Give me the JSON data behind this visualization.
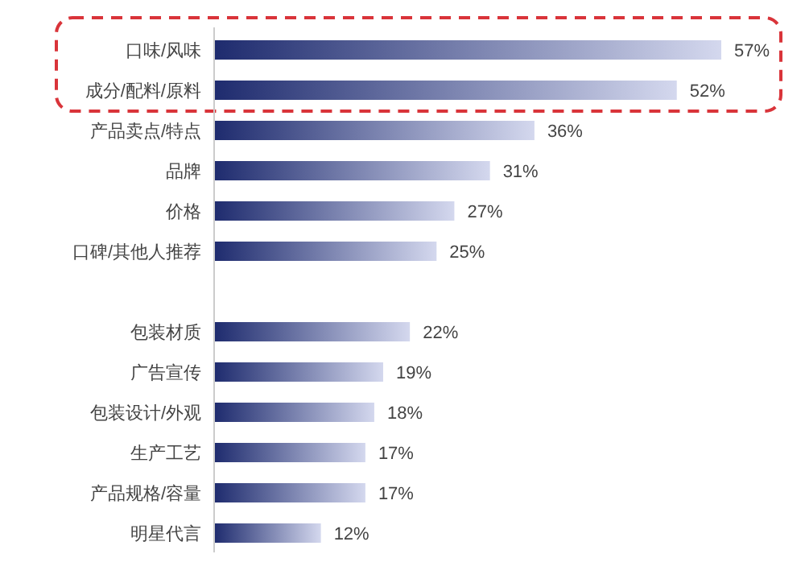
{
  "chart_data": {
    "type": "bar",
    "orientation": "horizontal",
    "categories": [
      "口味/风味",
      "成分/配料/原料",
      "产品卖点/特点",
      "品牌",
      "价格",
      "口碑/其他人推荐",
      null,
      "包装材质",
      "广告宣传",
      "包装设计/外观",
      "生产工艺",
      "产品规格/容量",
      "明星代言"
    ],
    "values": [
      57,
      52,
      36,
      31,
      27,
      25,
      null,
      22,
      19,
      18,
      17,
      17,
      12
    ],
    "value_labels": [
      "57%",
      "52%",
      "36%",
      "31%",
      "27%",
      "25%",
      null,
      "22%",
      "19%",
      "18%",
      "17%",
      "17%",
      "12%"
    ],
    "color": "#1e2b6e"
  }
}
